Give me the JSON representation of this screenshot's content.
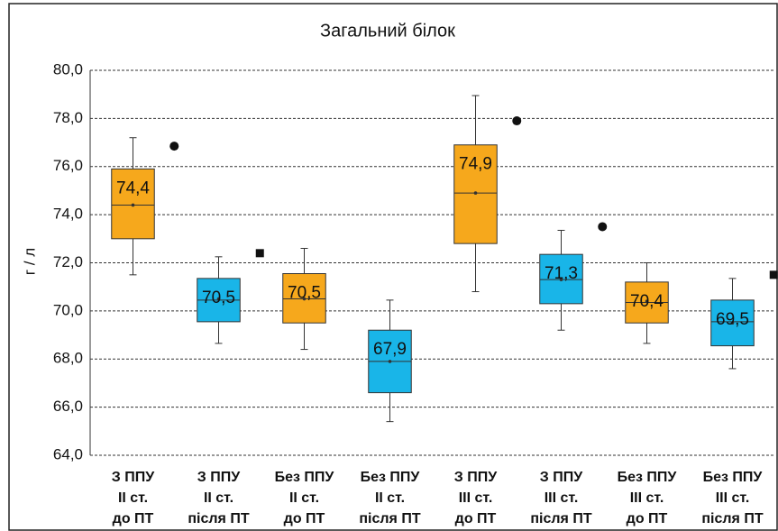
{
  "chart_data": {
    "type": "box",
    "title": "Загальний білок",
    "y_label": "г / л",
    "categories": [
      [
        "З ППУ",
        "ІІ ст.",
        "до ПТ"
      ],
      [
        "З ППУ",
        "ІІ ст.",
        "після ПТ"
      ],
      [
        "Без ППУ",
        "ІІ ст.",
        "до ПТ"
      ],
      [
        "Без ППУ",
        "ІІ ст.",
        "після ПТ"
      ],
      [
        "З ППУ",
        "ІІІ ст.",
        "до ПТ"
      ],
      [
        "З ППУ",
        "ІІІ ст.",
        "після ПТ"
      ],
      [
        "Без ППУ",
        "ІІІ ст.",
        "до ПТ"
      ],
      [
        "Без ППУ",
        "ІІІ ст.",
        "після ПТ"
      ]
    ],
    "colors": [
      "#f6a81c",
      "#19b5e8",
      "#f6a81c",
      "#19b5e8",
      "#f6a81c",
      "#19b5e8",
      "#f6a81c",
      "#19b5e8"
    ],
    "whisker_low": [
      71.5,
      68.65,
      68.4,
      65.4,
      70.8,
      69.2,
      68.65,
      67.6
    ],
    "q1": [
      73.0,
      69.55,
      69.5,
      66.6,
      72.8,
      70.3,
      69.5,
      68.55
    ],
    "median": [
      74.4,
      70.45,
      70.5,
      67.9,
      74.9,
      71.3,
      70.35,
      69.55
    ],
    "q3": [
      75.9,
      71.35,
      71.55,
      69.2,
      76.9,
      72.35,
      71.2,
      70.45
    ],
    "whisker_high": [
      77.2,
      72.25,
      72.6,
      70.45,
      78.95,
      73.35,
      72.0,
      71.35
    ],
    "means": {
      "values": [
        74.4,
        70.5,
        70.5,
        67.9,
        74.9,
        71.3,
        70.4,
        69.5
      ],
      "value_labels": [
        "74,4",
        "70,5",
        "70,5",
        "67,9",
        "74,9",
        "71,3",
        "70,4",
        "69,5"
      ]
    },
    "markers": {
      "values": [
        76.85,
        72.4,
        null,
        null,
        77.9,
        73.5,
        null,
        71.5
      ],
      "shapes": [
        "circle",
        "square",
        null,
        null,
        "circle",
        "circle",
        null,
        "square"
      ]
    },
    "ylim": [
      64,
      80
    ],
    "yticks": [
      {
        "value": 64,
        "label": "64,0"
      },
      {
        "value": 66,
        "label": "66,0"
      },
      {
        "value": 68,
        "label": "68,0"
      },
      {
        "value": 70,
        "label": "70,0"
      },
      {
        "value": 72,
        "label": "72,0"
      },
      {
        "value": 74,
        "label": "74,0"
      },
      {
        "value": 76,
        "label": "76,0"
      },
      {
        "value": 78,
        "label": "78,0"
      },
      {
        "value": 80,
        "label": "80,0"
      }
    ],
    "grid": true
  }
}
